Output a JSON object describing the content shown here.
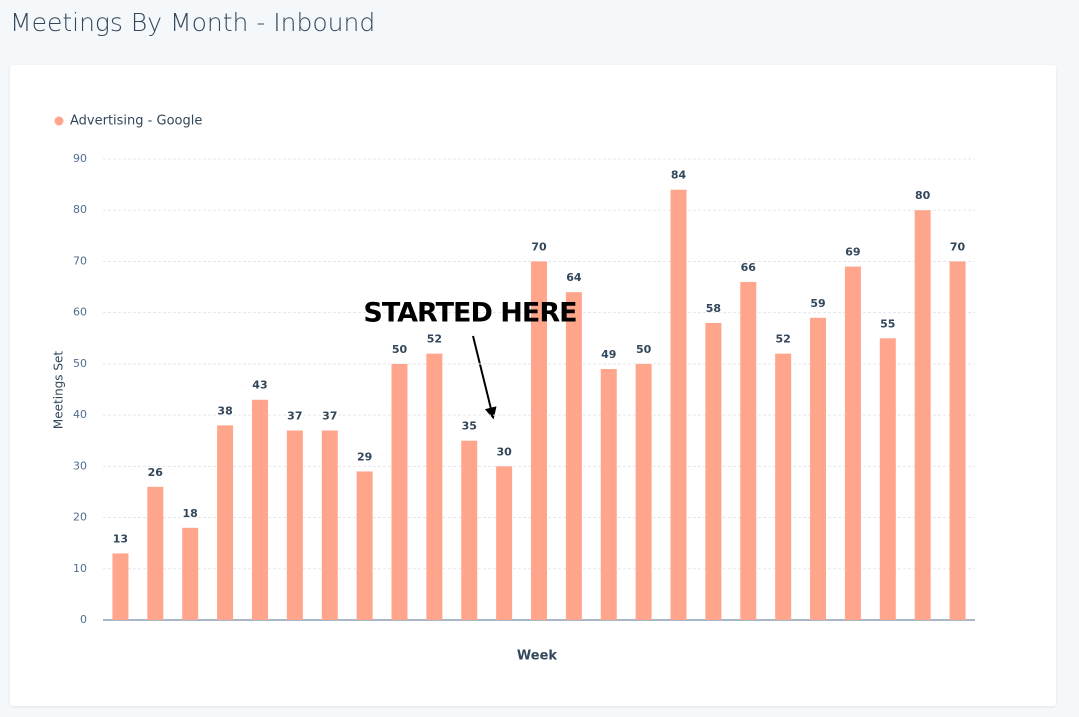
{
  "chart_data": {
    "type": "bar",
    "title": "Meetings By Month - Inbound",
    "x_label": "Week",
    "y_label": "Meetings Set",
    "annotation": "STARTED HERE",
    "categories": [
      null,
      null,
      null,
      null,
      null,
      null,
      null,
      null,
      null,
      null,
      null,
      null,
      null,
      null,
      null,
      null,
      null,
      null,
      null,
      null,
      null,
      null,
      null,
      null,
      null
    ],
    "series": [
      {
        "name": "Advertising - Google",
        "color": "#ffa58c",
        "values": [
          13,
          26,
          18,
          38,
          43,
          37,
          37,
          29,
          50,
          52,
          35,
          30,
          70,
          64,
          49,
          50,
          84,
          58,
          66,
          52,
          59,
          69,
          55,
          80,
          70
        ]
      }
    ],
    "ylim": [
      0,
      90
    ],
    "yticks": [
      0,
      10,
      20,
      30,
      40,
      50,
      60,
      70,
      80,
      90
    ],
    "grid": true
  }
}
